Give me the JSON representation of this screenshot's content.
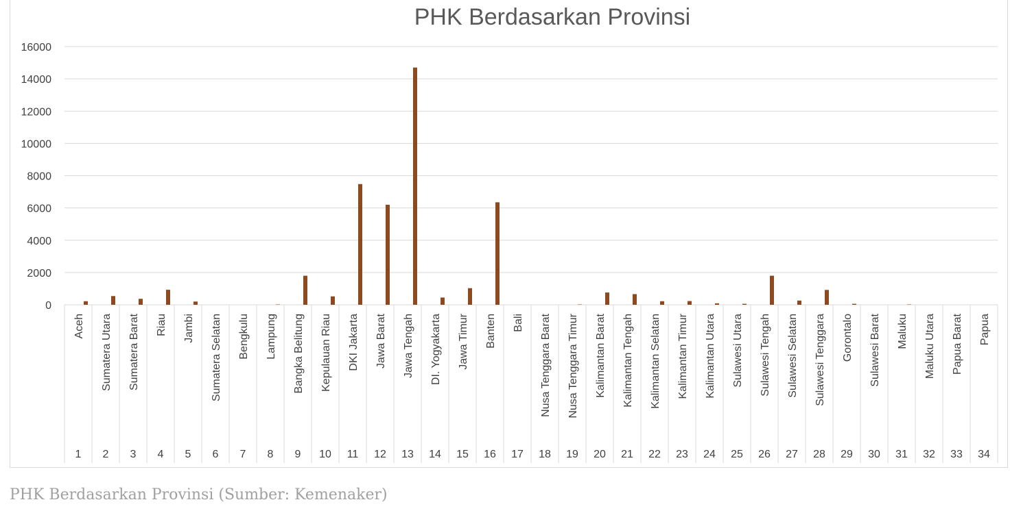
{
  "caption": "PHK Berdasarkan Provinsi (Sumber: Kemenaker)",
  "colors": {
    "bar": "#8B4A1F",
    "grid": "#d9d9d9",
    "text": "#404040",
    "title": "#595959"
  },
  "chart_data": {
    "type": "bar",
    "title": "PHK Berdasarkan Provinsi",
    "xlabel": "",
    "ylabel": "",
    "ylim": [
      0,
      16000
    ],
    "yticks": [
      0,
      2000,
      4000,
      6000,
      8000,
      10000,
      12000,
      14000,
      16000
    ],
    "grid": true,
    "categories": [
      {
        "num": "1",
        "name": "Aceh"
      },
      {
        "num": "2",
        "name": "Sumatera Utara"
      },
      {
        "num": "3",
        "name": "Sumatera Barat"
      },
      {
        "num": "4",
        "name": "Riau"
      },
      {
        "num": "5",
        "name": "Jambi"
      },
      {
        "num": "6",
        "name": "Sumatera Selatan"
      },
      {
        "num": "7",
        "name": "Bengkulu"
      },
      {
        "num": "8",
        "name": "Lampung"
      },
      {
        "num": "9",
        "name": "Bangka Belitung"
      },
      {
        "num": "10",
        "name": "Kepulauan Riau"
      },
      {
        "num": "11",
        "name": "DKI Jakarta"
      },
      {
        "num": "12",
        "name": "Jawa Barat"
      },
      {
        "num": "13",
        "name": "Jawa Tengah"
      },
      {
        "num": "14",
        "name": "DI. Yogyakarta"
      },
      {
        "num": "15",
        "name": "Jawa Timur"
      },
      {
        "num": "16",
        "name": "Banten"
      },
      {
        "num": "17",
        "name": "Bali"
      },
      {
        "num": "18",
        "name": "Nusa Tenggara Barat"
      },
      {
        "num": "19",
        "name": "Nusa Tenggara Timur"
      },
      {
        "num": "20",
        "name": "Kalimantan Barat"
      },
      {
        "num": "21",
        "name": "Kalimantan Tengah"
      },
      {
        "num": "22",
        "name": "Kalimantan Selatan"
      },
      {
        "num": "23",
        "name": "Kalimantan Timur"
      },
      {
        "num": "24",
        "name": "Kalimantan Utara"
      },
      {
        "num": "25",
        "name": "Sulawesi Utara"
      },
      {
        "num": "26",
        "name": "Sulawesi Tengah"
      },
      {
        "num": "27",
        "name": "Sulawesi Selatan"
      },
      {
        "num": "28",
        "name": "Sulawesi Tenggara"
      },
      {
        "num": "29",
        "name": "Gorontalo"
      },
      {
        "num": "30",
        "name": "Sulawesi Barat"
      },
      {
        "num": "31",
        "name": "Maluku"
      },
      {
        "num": "32",
        "name": "Maluku Utara"
      },
      {
        "num": "33",
        "name": "Papua Barat"
      },
      {
        "num": "34",
        "name": "Papua"
      }
    ],
    "values": [
      220,
      540,
      370,
      930,
      200,
      0,
      0,
      20,
      1800,
      520,
      7480,
      6200,
      14700,
      450,
      1030,
      6350,
      0,
      0,
      20,
      760,
      660,
      220,
      230,
      90,
      60,
      1800,
      260,
      920,
      60,
      0,
      20,
      0,
      0,
      0
    ]
  }
}
